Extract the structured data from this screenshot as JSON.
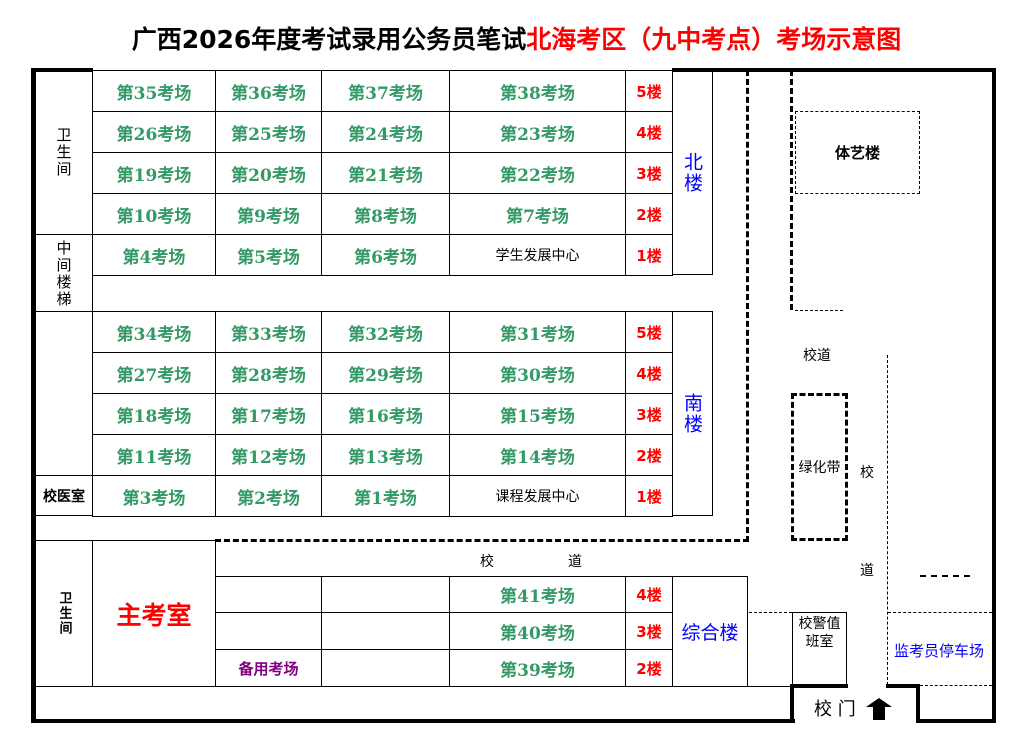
{
  "title": {
    "prefix": "广西2026年度考试录用公务员笔试",
    "highlight": "北海考区（九中考点）考场示意图"
  },
  "colors": {
    "room": "#339966",
    "floor": "#ff0000",
    "building": "#0000ff",
    "spare": "#800080"
  },
  "north": {
    "label": "北楼",
    "left_top": "卫生间",
    "left_bottom": "中间楼梯",
    "rows": [
      {
        "rooms": [
          "第35考场",
          "第36考场",
          "第37考场",
          "第38考场"
        ],
        "floor": "5楼"
      },
      {
        "rooms": [
          "第26考场",
          "第25考场",
          "第24考场",
          "第23考场"
        ],
        "floor": "4楼"
      },
      {
        "rooms": [
          "第19考场",
          "第20考场",
          "第21考场",
          "第22考场"
        ],
        "floor": "3楼"
      },
      {
        "rooms": [
          "第10考场",
          "第9考场",
          "第8考场",
          "第7考场"
        ],
        "floor": "2楼"
      },
      {
        "rooms": [
          "第4考场",
          "第5考场",
          "第6考场",
          "学生发展中心"
        ],
        "floor": "1楼"
      }
    ]
  },
  "south": {
    "label": "南楼",
    "clinic": "校医室",
    "rows": [
      {
        "rooms": [
          "第34考场",
          "第33考场",
          "第32考场",
          "第31考场"
        ],
        "floor": "5楼"
      },
      {
        "rooms": [
          "第27考场",
          "第28考场",
          "第29考场",
          "第30考场"
        ],
        "floor": "4楼"
      },
      {
        "rooms": [
          "第18考场",
          "第17考场",
          "第16考场",
          "第15考场"
        ],
        "floor": "3楼"
      },
      {
        "rooms": [
          "第11考场",
          "第12考场",
          "第13考场",
          "第14考场"
        ],
        "floor": "2楼"
      },
      {
        "rooms": [
          "第3考场",
          "第2考场",
          "第1考场",
          "课程发展中心"
        ],
        "floor": "1楼"
      }
    ]
  },
  "complex": {
    "label": "综合楼",
    "toilet": "卫生间",
    "main_room": "主考室",
    "spare_room": "备用考场",
    "rows": [
      {
        "room": "第41考场",
        "floor": "4楼"
      },
      {
        "room": "第40考场",
        "floor": "3楼"
      },
      {
        "room": "第39考场",
        "floor": "2楼"
      }
    ]
  },
  "campus": {
    "arts_building": "体艺楼",
    "road": "校道",
    "road_h1": "校",
    "road_h2": "道",
    "road_v1": "校",
    "road_v2": "道",
    "green_belt": "绿化带",
    "guard_room": "校警值班室",
    "parking": "监考员停车场",
    "gate": "校 门"
  }
}
